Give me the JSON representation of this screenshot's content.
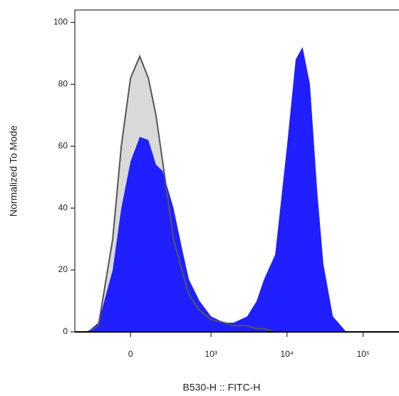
{
  "chart_data": {
    "type": "area",
    "xlabel": "B530-H :: FITC-H",
    "ylabel": "Normalized To Mode",
    "xscale": "biexponential",
    "x": [
      -300,
      -200,
      -100,
      -50,
      0,
      50,
      100,
      150,
      200,
      300,
      400,
      500,
      700,
      1000,
      1500,
      2000,
      3000,
      4000,
      5000,
      7000,
      10000,
      13000,
      16000,
      20000,
      25000,
      30000,
      40000,
      60000,
      100000
    ],
    "series": [
      {
        "color": "#d9d9d9",
        "stroke": "#555555",
        "values": [
          0,
          2,
          30,
          60,
          82,
          89,
          82,
          70,
          55,
          30,
          20,
          12,
          7,
          4,
          3,
          2,
          2,
          1,
          1,
          0,
          0,
          0,
          0,
          0,
          0,
          0,
          0,
          0,
          0
        ]
      },
      {
        "color": "#1f1fff",
        "values": [
          0,
          3,
          20,
          40,
          55,
          63,
          62,
          54,
          52,
          40,
          27,
          17,
          10,
          5,
          3,
          3,
          5,
          10,
          17,
          25,
          60,
          88,
          92,
          80,
          45,
          22,
          5,
          0,
          0
        ]
      }
    ],
    "xlim": [
      -460,
      295000
    ],
    "ylim": [
      0,
      104
    ],
    "xticks": [
      0,
      {
        "value": 1000,
        "label": "10³"
      },
      {
        "value": 10000,
        "label": "10⁴"
      },
      {
        "value": 100000,
        "label": "10⁵"
      }
    ],
    "yticks": [
      0,
      20,
      40,
      60,
      80,
      100
    ]
  }
}
